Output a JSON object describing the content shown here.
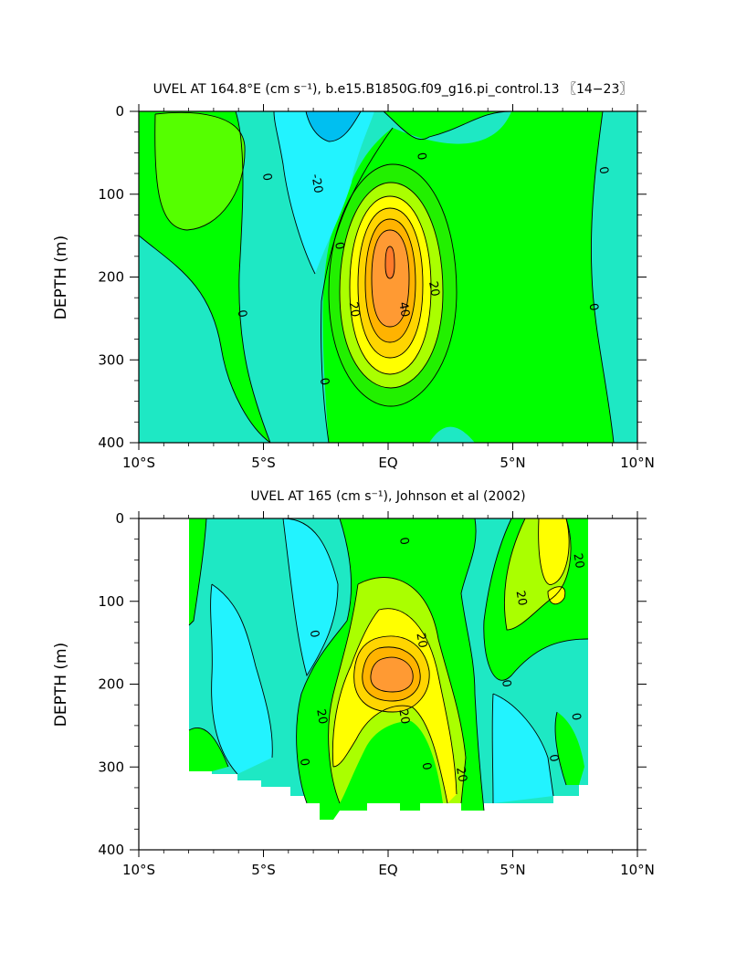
{
  "chart_data": [
    {
      "type": "contour",
      "title": "UVEL AT 164.8°E (cm s⁻¹), b.e15.B1850G.f09_g16.pi_control.13 〖14−23〗",
      "xlabel": "",
      "ylabel": "DEPTH (m)",
      "xlim": [
        -10,
        10
      ],
      "ylim": [
        400,
        0
      ],
      "y_inverted": true,
      "x_ticks": [
        -10,
        -5,
        0,
        5,
        10
      ],
      "x_tick_labels": [
        "10°S",
        "5°S",
        "EQ",
        "5°N",
        "10°N"
      ],
      "y_ticks": [
        0,
        100,
        200,
        300,
        400
      ],
      "y_tick_labels": [
        "0",
        "100",
        "200",
        "300",
        "400"
      ],
      "contour_interval": 10,
      "contour_labels": [
        {
          "text": "0",
          "x": -5.0,
          "y": 80
        },
        {
          "text": "-20",
          "x": -3.0,
          "y": 88
        },
        {
          "text": "0",
          "x": 1.2,
          "y": 55
        },
        {
          "text": "0",
          "x": 8.5,
          "y": 72
        },
        {
          "text": "0",
          "x": -2.1,
          "y": 163
        },
        {
          "text": "20",
          "x": 1.7,
          "y": 215
        },
        {
          "text": "40",
          "x": 0.5,
          "y": 240
        },
        {
          "text": "20",
          "x": -1.5,
          "y": 240
        },
        {
          "text": "0",
          "x": -6.0,
          "y": 245
        },
        {
          "text": "0",
          "x": 8.1,
          "y": 237
        },
        {
          "text": "0",
          "x": -2.7,
          "y": 327
        }
      ]
    },
    {
      "type": "contour",
      "title": "UVEL AT 165 (cm s⁻¹), Johnson et al (2002)",
      "xlabel": "",
      "ylabel": "DEPTH (m)",
      "xlim": [
        -10,
        10
      ],
      "ylim": [
        400,
        0
      ],
      "y_inverted": true,
      "x_ticks": [
        -10,
        -5,
        0,
        5,
        10
      ],
      "x_tick_labels": [
        "10°S",
        "5°S",
        "EQ",
        "5°N",
        "10°N"
      ],
      "y_ticks": [
        0,
        100,
        200,
        300,
        400
      ],
      "y_tick_labels": [
        "0",
        "100",
        "200",
        "300",
        "400"
      ],
      "data_x_range": [
        -8,
        8
      ],
      "contour_interval": 10,
      "contour_labels": [
        {
          "text": "0",
          "x": 0.5,
          "y": 28
        },
        {
          "text": "20",
          "x": 7.5,
          "y": 52
        },
        {
          "text": "20",
          "x": 5.2,
          "y": 97
        },
        {
          "text": "0",
          "x": -3.1,
          "y": 140
        },
        {
          "text": "20",
          "x": 1.2,
          "y": 148
        },
        {
          "text": "0",
          "x": 4.6,
          "y": 200
        },
        {
          "text": "20",
          "x": -2.8,
          "y": 240
        },
        {
          "text": "20",
          "x": 0.5,
          "y": 240
        },
        {
          "text": "0",
          "x": 7.4,
          "y": 240
        },
        {
          "text": "0",
          "x": -3.5,
          "y": 295
        },
        {
          "text": "0",
          "x": 1.4,
          "y": 300
        },
        {
          "text": "20",
          "x": 2.8,
          "y": 310
        },
        {
          "text": "0",
          "x": 6.5,
          "y": 290
        }
      ]
    }
  ]
}
